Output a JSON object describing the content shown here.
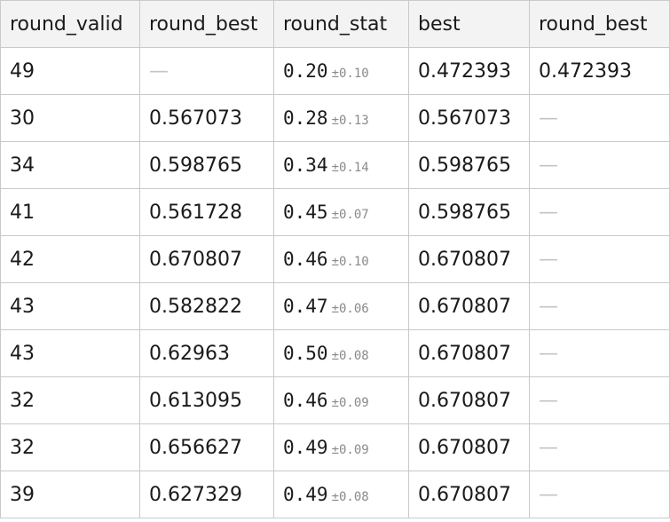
{
  "table": {
    "columns": [
      "round_valid",
      "round_best",
      "round_stat",
      "best",
      "round_best"
    ],
    "rows": [
      {
        "round_valid": "49",
        "round_best": "—",
        "stat_mean": "0.20",
        "stat_pm": "±0.10",
        "best": "0.472393",
        "round_best_2": "0.472393"
      },
      {
        "round_valid": "30",
        "round_best": "0.567073",
        "stat_mean": "0.28",
        "stat_pm": "±0.13",
        "best": "0.567073",
        "round_best_2": "—"
      },
      {
        "round_valid": "34",
        "round_best": "0.598765",
        "stat_mean": "0.34",
        "stat_pm": "±0.14",
        "best": "0.598765",
        "round_best_2": "—"
      },
      {
        "round_valid": "41",
        "round_best": "0.561728",
        "stat_mean": "0.45",
        "stat_pm": "±0.07",
        "best": "0.598765",
        "round_best_2": "—"
      },
      {
        "round_valid": "42",
        "round_best": "0.670807",
        "stat_mean": "0.46",
        "stat_pm": "±0.10",
        "best": "0.670807",
        "round_best_2": "—"
      },
      {
        "round_valid": "43",
        "round_best": "0.582822",
        "stat_mean": "0.47",
        "stat_pm": "±0.06",
        "best": "0.670807",
        "round_best_2": "—"
      },
      {
        "round_valid": "43",
        "round_best": "0.62963",
        "stat_mean": "0.50",
        "stat_pm": "±0.08",
        "best": "0.670807",
        "round_best_2": "—"
      },
      {
        "round_valid": "32",
        "round_best": "0.613095",
        "stat_mean": "0.46",
        "stat_pm": "±0.09",
        "best": "0.670807",
        "round_best_2": "—"
      },
      {
        "round_valid": "32",
        "round_best": "0.656627",
        "stat_mean": "0.49",
        "stat_pm": "±0.09",
        "best": "0.670807",
        "round_best_2": "—"
      },
      {
        "round_valid": "39",
        "round_best": "0.627329",
        "stat_mean": "0.49",
        "stat_pm": "±0.08",
        "best": "0.670807",
        "round_best_2": "—"
      }
    ]
  },
  "colors": {
    "header_bg": "#f3f3f3",
    "border": "#c9c9c9",
    "dash": "#c4c4c4",
    "pm_text": "#8a8a8a"
  }
}
